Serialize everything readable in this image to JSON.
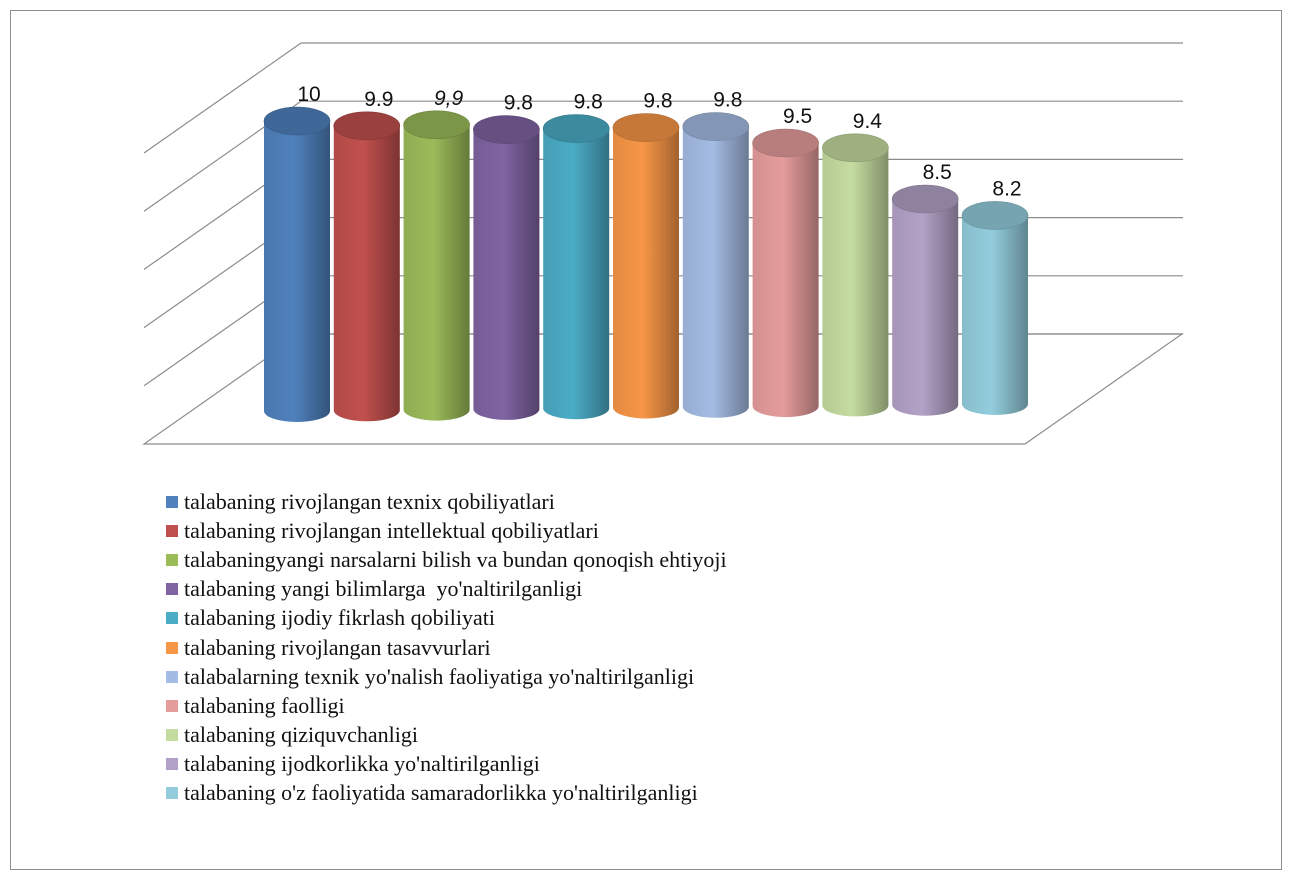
{
  "chart_data": {
    "type": "bar",
    "style": "3d-cylinder",
    "gridlines": true,
    "legend_position": "bottom",
    "ylim": [
      0,
      10
    ],
    "series": [
      {
        "name": "talabaning rivojlangan texnix qobiliyatlari",
        "value": 10,
        "label": "10",
        "color": "#4F81BD",
        "italic": false
      },
      {
        "name": "talabaning rivojlangan intellektual qobiliyatlari",
        "value": 9.9,
        "label": "9.9",
        "color": "#C0504D",
        "italic": false
      },
      {
        "name": "talabaningyangi narsalarni bilish va bundan qonoqish ehtiyoji",
        "value": 9.9,
        "label": "9,9",
        "color": "#9BBB59",
        "italic": true
      },
      {
        "name": "talabaning yangi bilimlarga  yo'naltirilganligi",
        "value": 9.8,
        "label": "9.8",
        "color": "#8064A2",
        "italic": false
      },
      {
        "name": "talabaning ijodiy fikrlash qobiliyati",
        "value": 9.8,
        "label": "9.8",
        "color": "#4BACC6",
        "italic": false
      },
      {
        "name": "talabaning rivojlangan tasavvurlari",
        "value": 9.8,
        "label": "9.8",
        "color": "#F79646",
        "italic": false
      },
      {
        "name": "talabalarning texnik yo'nalish faoliyatiga yo'naltirilganligi",
        "value": 9.8,
        "label": "9.8",
        "color": "#A4BCE3",
        "italic": false
      },
      {
        "name": "talabaning faolligi",
        "value": 9.5,
        "label": "9.5",
        "color": "#E59D9C",
        "italic": false
      },
      {
        "name": "talabaning qiziquvchanligi",
        "value": 9.4,
        "label": "9.4",
        "color": "#C5DCA0",
        "italic": false
      },
      {
        "name": "talabaning ijodkorlikka yo'naltirilganligi",
        "value": 8.5,
        "label": "8.5",
        "color": "#B3A2C7",
        "italic": false
      },
      {
        "name": "talabaning o'z faoliyatida samaradorlikka yo'naltirilganligi",
        "value": 8.2,
        "label": "8.2",
        "color": "#93CDDD",
        "italic": false
      }
    ]
  }
}
